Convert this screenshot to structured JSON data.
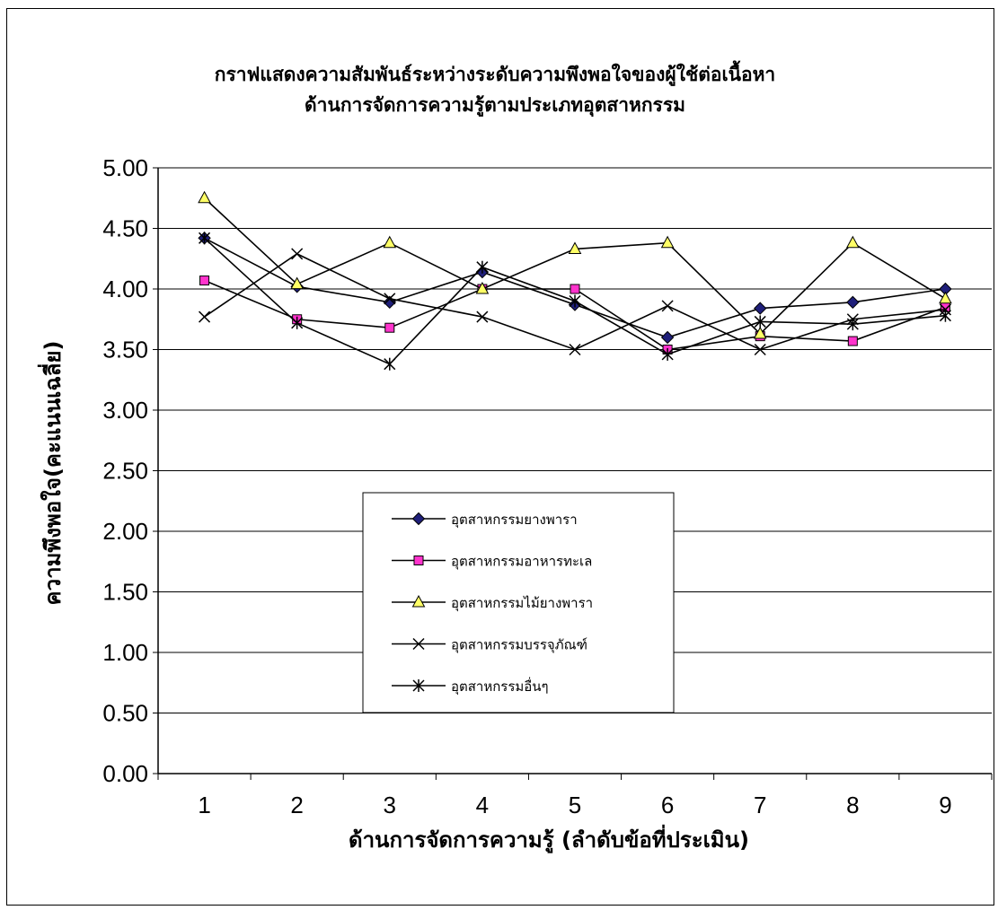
{
  "chart_data": {
    "type": "line",
    "title": "กราฟแสดงความสัมพันธ์ระหว่างระดับความพึงพอใจของผู้ใช้ต่อเนื้อหา",
    "subtitle": "ด้านการจัดการความรู้ตามประเภทอุตสาหกรรม",
    "xlabel": "ด้านการจัดการความรู้ (ลำดับข้อที่ประเมิน)",
    "ylabel": "ความพึงพอใจ(คะแนนเฉลี่ย)",
    "categories": [
      "1",
      "2",
      "3",
      "4",
      "5",
      "6",
      "7",
      "8",
      "9"
    ],
    "ylim": [
      0,
      5
    ],
    "yticks": [
      "0.00",
      "0.50",
      "1.00",
      "1.50",
      "2.00",
      "2.50",
      "3.00",
      "3.50",
      "4.00",
      "4.50",
      "5.00"
    ],
    "grid": true,
    "legend_position": "center",
    "series": [
      {
        "name": "อุตสาหกรรมยางพารา",
        "marker": "diamond",
        "color": "#1f1f7a",
        "values": [
          4.42,
          4.02,
          3.89,
          4.14,
          3.87,
          3.6,
          3.84,
          3.89,
          4.0
        ]
      },
      {
        "name": "อุตสาหกรรมอาหารทะเล",
        "marker": "square",
        "color": "#ff33cc",
        "values": [
          4.07,
          3.75,
          3.68,
          4.0,
          4.0,
          3.5,
          3.61,
          3.57,
          3.85
        ]
      },
      {
        "name": "อุตสาหกรรมไม้ยางพารา",
        "marker": "triangle",
        "color": "#ffff66",
        "values": [
          4.75,
          4.04,
          4.38,
          4.0,
          4.33,
          4.38,
          3.63,
          4.38,
          3.92
        ]
      },
      {
        "name": "อุตสาหกรรมบรรจุภัณฑ์",
        "marker": "x",
        "color": "#000000",
        "values": [
          3.77,
          4.29,
          3.92,
          3.77,
          3.5,
          3.86,
          3.5,
          3.75,
          3.83
        ]
      },
      {
        "name": "อุตสาหกรรมอื่นๆ",
        "marker": "star",
        "color": "#000000",
        "values": [
          4.42,
          3.72,
          3.38,
          4.18,
          3.9,
          3.46,
          3.73,
          3.71,
          3.78
        ]
      }
    ]
  }
}
